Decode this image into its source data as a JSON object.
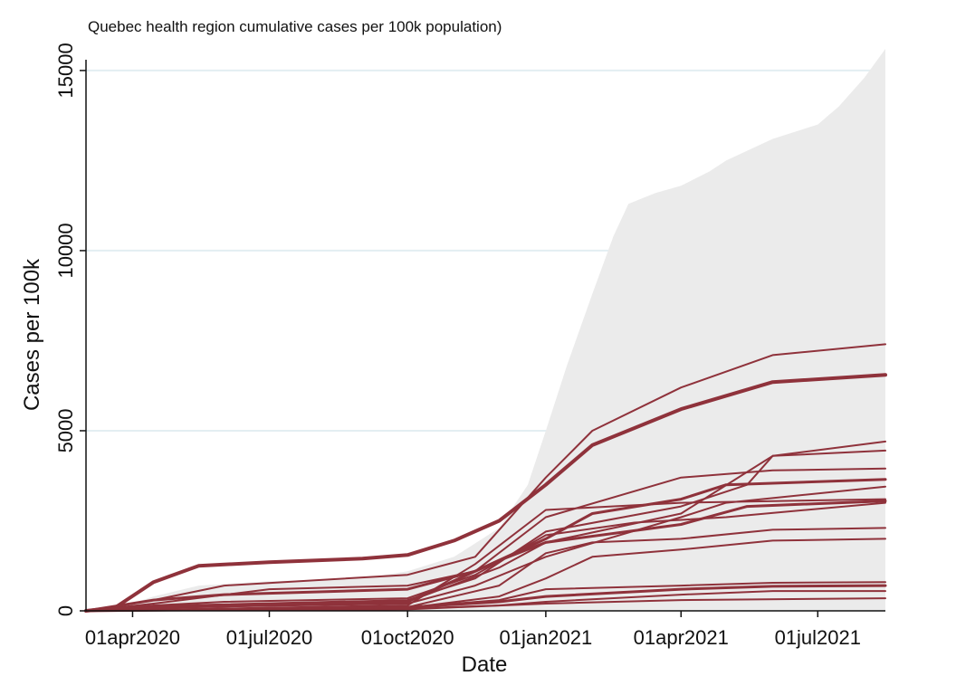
{
  "chart_data": {
    "type": "line",
    "title": "Quebec health region cumulative cases per 100k population)",
    "xlabel": "Date",
    "ylabel": "Cases per 100k",
    "ylim": [
      0,
      15500
    ],
    "xlim": [
      "2020-03-01",
      "2021-08-15"
    ],
    "yticks": [
      0,
      5000,
      10000,
      15000
    ],
    "ytick_labels": [
      "0",
      "5000",
      "10000",
      "15000"
    ],
    "xticks": [
      "2020-04-01",
      "2020-07-01",
      "2020-10-01",
      "2021-01-01",
      "2021-04-01",
      "2021-07-01"
    ],
    "xtick_labels": [
      "01apr2020",
      "01jul2020",
      "01oct2020",
      "01jan2021",
      "01apr2021",
      "01jul2021"
    ],
    "grid": true,
    "background_band": {
      "description_color": "#ebebeb",
      "upper": [
        {
          "x": "2020-03-01",
          "y": 0
        },
        {
          "x": "2020-03-20",
          "y": 50
        },
        {
          "x": "2020-04-15",
          "y": 400
        },
        {
          "x": "2020-05-15",
          "y": 700
        },
        {
          "x": "2020-06-30",
          "y": 820
        },
        {
          "x": "2020-09-01",
          "y": 900
        },
        {
          "x": "2020-10-01",
          "y": 1100
        },
        {
          "x": "2020-11-01",
          "y": 1500
        },
        {
          "x": "2020-12-01",
          "y": 2300
        },
        {
          "x": "2020-12-20",
          "y": 3500
        },
        {
          "x": "2021-01-01",
          "y": 5000
        },
        {
          "x": "2021-01-15",
          "y": 6800
        },
        {
          "x": "2021-02-01",
          "y": 8800
        },
        {
          "x": "2021-02-15",
          "y": 10400
        },
        {
          "x": "2021-02-25",
          "y": 11300
        },
        {
          "x": "2021-03-15",
          "y": 11600
        },
        {
          "x": "2021-04-01",
          "y": 11800
        },
        {
          "x": "2021-04-20",
          "y": 12200
        },
        {
          "x": "2021-05-01",
          "y": 12500
        },
        {
          "x": "2021-06-01",
          "y": 13100
        },
        {
          "x": "2021-07-01",
          "y": 13500
        },
        {
          "x": "2021-07-15",
          "y": 14000
        },
        {
          "x": "2021-08-01",
          "y": 14800
        },
        {
          "x": "2021-08-15",
          "y": 15600
        }
      ]
    },
    "series_color": "#8f323b",
    "series": [
      {
        "width": 2,
        "points": [
          [
            "2020-03-01",
            0
          ],
          [
            "2020-04-15",
            300
          ],
          [
            "2020-06-01",
            700
          ],
          [
            "2020-10-01",
            1000
          ],
          [
            "2020-11-15",
            1500
          ],
          [
            "2021-01-01",
            3700
          ],
          [
            "2021-02-01",
            5000
          ],
          [
            "2021-04-01",
            6200
          ],
          [
            "2021-06-01",
            7100
          ],
          [
            "2021-08-15",
            7400
          ]
        ]
      },
      {
        "width": 4,
        "points": [
          [
            "2020-03-01",
            0
          ],
          [
            "2020-03-20",
            80
          ],
          [
            "2020-04-15",
            800
          ],
          [
            "2020-05-15",
            1250
          ],
          [
            "2020-07-01",
            1350
          ],
          [
            "2020-09-01",
            1450
          ],
          [
            "2020-10-01",
            1550
          ],
          [
            "2020-11-01",
            1950
          ],
          [
            "2020-12-01",
            2500
          ],
          [
            "2021-01-01",
            3500
          ],
          [
            "2021-02-01",
            4600
          ],
          [
            "2021-04-01",
            5600
          ],
          [
            "2021-06-01",
            6350
          ],
          [
            "2021-08-15",
            6550
          ]
        ]
      },
      {
        "width": 2,
        "points": [
          [
            "2020-03-01",
            0
          ],
          [
            "2020-05-01",
            150
          ],
          [
            "2020-10-01",
            300
          ],
          [
            "2020-11-15",
            900
          ],
          [
            "2021-01-01",
            2200
          ],
          [
            "2021-04-01",
            2900
          ],
          [
            "2021-05-15",
            3500
          ],
          [
            "2021-06-01",
            4300
          ],
          [
            "2021-08-15",
            4700
          ]
        ]
      },
      {
        "width": 2,
        "points": [
          [
            "2020-03-01",
            0
          ],
          [
            "2020-05-01",
            100
          ],
          [
            "2020-10-01",
            250
          ],
          [
            "2020-12-01",
            1200
          ],
          [
            "2021-01-01",
            1900
          ],
          [
            "2021-04-01",
            2700
          ],
          [
            "2021-04-20",
            3200
          ],
          [
            "2021-06-01",
            4300
          ],
          [
            "2021-08-15",
            4450
          ]
        ]
      },
      {
        "width": 2,
        "points": [
          [
            "2020-03-01",
            0
          ],
          [
            "2020-04-15",
            200
          ],
          [
            "2020-07-01",
            600
          ],
          [
            "2020-10-01",
            700
          ],
          [
            "2020-11-15",
            1100
          ],
          [
            "2021-01-01",
            2600
          ],
          [
            "2021-04-01",
            3700
          ],
          [
            "2021-06-01",
            3900
          ],
          [
            "2021-08-15",
            3950
          ]
        ]
      },
      {
        "width": 3,
        "points": [
          [
            "2020-03-01",
            0
          ],
          [
            "2020-04-15",
            300
          ],
          [
            "2020-06-01",
            450
          ],
          [
            "2020-10-01",
            600
          ],
          [
            "2020-11-15",
            1100
          ],
          [
            "2021-01-01",
            2000
          ],
          [
            "2021-02-01",
            2700
          ],
          [
            "2021-04-01",
            3100
          ],
          [
            "2021-05-01",
            3500
          ],
          [
            "2021-08-15",
            3650
          ]
        ]
      },
      {
        "width": 2,
        "points": [
          [
            "2020-03-01",
            0
          ],
          [
            "2020-05-01",
            100
          ],
          [
            "2020-10-01",
            200
          ],
          [
            "2020-11-15",
            700
          ],
          [
            "2021-01-01",
            1500
          ],
          [
            "2021-04-01",
            2600
          ],
          [
            "2021-05-01",
            3000
          ],
          [
            "2021-08-15",
            3450
          ]
        ]
      },
      {
        "width": 2,
        "points": [
          [
            "2020-03-01",
            0
          ],
          [
            "2020-10-01",
            150
          ],
          [
            "2020-11-15",
            1300
          ],
          [
            "2021-01-01",
            2800
          ],
          [
            "2021-04-01",
            3000
          ],
          [
            "2021-08-15",
            3100
          ]
        ]
      },
      {
        "width": 3,
        "points": [
          [
            "2020-03-01",
            0
          ],
          [
            "2020-05-01",
            100
          ],
          [
            "2020-10-01",
            250
          ],
          [
            "2020-12-01",
            1400
          ],
          [
            "2021-01-01",
            1900
          ],
          [
            "2021-04-01",
            2400
          ],
          [
            "2021-05-15",
            2900
          ],
          [
            "2021-08-15",
            3050
          ]
        ]
      },
      {
        "width": 2,
        "points": [
          [
            "2020-03-01",
            0
          ],
          [
            "2020-10-01",
            100
          ],
          [
            "2020-12-01",
            700
          ],
          [
            "2021-01-01",
            1600
          ],
          [
            "2021-02-01",
            1900
          ],
          [
            "2021-04-01",
            2000
          ],
          [
            "2021-06-01",
            2250
          ],
          [
            "2021-08-15",
            2300
          ]
        ]
      },
      {
        "width": 2,
        "points": [
          [
            "2020-03-01",
            0
          ],
          [
            "2020-10-01",
            80
          ],
          [
            "2020-12-01",
            400
          ],
          [
            "2021-01-01",
            900
          ],
          [
            "2021-02-01",
            1500
          ],
          [
            "2021-04-01",
            1700
          ],
          [
            "2021-06-01",
            1950
          ],
          [
            "2021-08-15",
            2000
          ]
        ]
      },
      {
        "width": 2,
        "points": [
          [
            "2020-03-01",
            0
          ],
          [
            "2020-10-01",
            100
          ],
          [
            "2020-12-01",
            300
          ],
          [
            "2021-01-01",
            600
          ],
          [
            "2021-04-01",
            700
          ],
          [
            "2021-06-01",
            780
          ],
          [
            "2021-08-15",
            800
          ]
        ]
      },
      {
        "width": 3,
        "points": [
          [
            "2020-03-01",
            0
          ],
          [
            "2020-10-01",
            100
          ],
          [
            "2020-12-01",
            250
          ],
          [
            "2021-01-01",
            400
          ],
          [
            "2021-04-01",
            600
          ],
          [
            "2021-06-01",
            680
          ],
          [
            "2021-08-15",
            700
          ]
        ]
      },
      {
        "width": 2,
        "points": [
          [
            "2020-03-01",
            0
          ],
          [
            "2020-10-01",
            60
          ],
          [
            "2020-12-01",
            150
          ],
          [
            "2021-01-01",
            250
          ],
          [
            "2021-04-01",
            450
          ],
          [
            "2021-06-01",
            550
          ],
          [
            "2021-08-15",
            550
          ]
        ]
      },
      {
        "width": 2,
        "points": [
          [
            "2020-03-01",
            0
          ],
          [
            "2020-10-01",
            40
          ],
          [
            "2021-01-01",
            200
          ],
          [
            "2021-04-01",
            300
          ],
          [
            "2021-08-15",
            350
          ]
        ]
      },
      {
        "width": 2,
        "points": [
          [
            "2020-03-01",
            0
          ],
          [
            "2020-04-15",
            150
          ],
          [
            "2020-06-01",
            250
          ],
          [
            "2020-10-01",
            350
          ],
          [
            "2020-11-15",
            1000
          ],
          [
            "2021-01-01",
            2100
          ],
          [
            "2021-03-01",
            2450
          ],
          [
            "2021-05-01",
            2600
          ],
          [
            "2021-08-15",
            3000
          ]
        ]
      }
    ]
  }
}
